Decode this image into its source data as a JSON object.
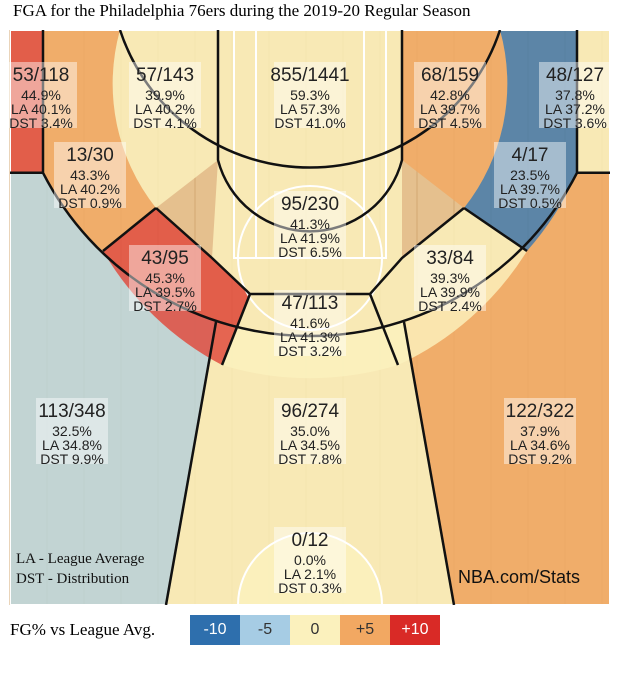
{
  "title": "FGA for the Philadelphia 76ers during the 2019-20 Regular Season",
  "legend": {
    "label": "FG% vs League Avg.",
    "items": [
      {
        "text": "-10",
        "color": "#2e6fad",
        "text_color": "#ffffff"
      },
      {
        "text": "-5",
        "color": "#a6cce4",
        "text_color": "#333333"
      },
      {
        "text": "0",
        "color": "#fbf1bd",
        "text_color": "#333333"
      },
      {
        "text": "+5",
        "color": "#f2a862",
        "text_color": "#333333"
      },
      {
        "text": "+10",
        "color": "#d92a26",
        "text_color": "#ffffff"
      }
    ]
  },
  "notes": {
    "la": "LA - League Average",
    "dst": "DST - Distribution",
    "site": "NBA.com/Stats"
  },
  "chart_data": {
    "type": "heatmap",
    "title": "FGA for the Philadelphia 76ers during the 2019-20 Regular Season",
    "zones": [
      {
        "id": "left-corner-3",
        "made": 53,
        "att": 118,
        "fga": "53/118",
        "pct": "44.9%",
        "la": "LA 40.1%",
        "dst": "DST 3.4%",
        "color": "#e0483a"
      },
      {
        "id": "left-short-baseline",
        "made": 57,
        "att": 143,
        "fga": "57/143",
        "pct": "39.9%",
        "la": "LA 40.2%",
        "dst": "DST 4.1%",
        "color": "#fbf1bd"
      },
      {
        "id": "restricted-area",
        "made": 855,
        "att": 1441,
        "fga": "855/1441",
        "pct": "59.3%",
        "la": "LA 57.3%",
        "dst": "DST 41.0%",
        "color": "#fbf1bd"
      },
      {
        "id": "right-short-baseline",
        "made": 68,
        "att": 159,
        "fga": "68/159",
        "pct": "42.8%",
        "la": "LA 39.7%",
        "dst": "DST 4.5%",
        "color": "#f2a862"
      },
      {
        "id": "right-corner-3",
        "made": 48,
        "att": 127,
        "fga": "48/127",
        "pct": "37.8%",
        "la": "LA 37.2%",
        "dst": "DST 3.6%",
        "color": "#fbf1bd"
      },
      {
        "id": "left-baseline-mid",
        "made": 13,
        "att": 30,
        "fga": "13/30",
        "pct": "43.3%",
        "la": "LA 40.2%",
        "dst": "DST 0.9%",
        "color": "#f2a862"
      },
      {
        "id": "right-baseline-mid",
        "made": 4,
        "att": 17,
        "fga": "4/17",
        "pct": "23.5%",
        "la": "LA 39.7%",
        "dst": "DST 0.5%",
        "color": "#3d78ac"
      },
      {
        "id": "paint-non-ra",
        "made": 95,
        "att": 230,
        "fga": "95/230",
        "pct": "41.3%",
        "la": "LA 41.9%",
        "dst": "DST 6.5%",
        "color": "#fbf1bd"
      },
      {
        "id": "left-elbow-mid",
        "made": 43,
        "att": 95,
        "fga": "43/95",
        "pct": "45.3%",
        "la": "LA 39.5%",
        "dst": "DST 2.7%",
        "color": "#e0483a"
      },
      {
        "id": "right-elbow-mid",
        "made": 33,
        "att": 84,
        "fga": "33/84",
        "pct": "39.3%",
        "la": "LA 39.9%",
        "dst": "DST 2.4%",
        "color": "#fbf1bd"
      },
      {
        "id": "top-key-mid",
        "made": 47,
        "att": 113,
        "fga": "47/113",
        "pct": "41.6%",
        "la": "LA 41.3%",
        "dst": "DST 3.2%",
        "color": "#fbf1bd"
      },
      {
        "id": "left-wing-3",
        "made": 113,
        "att": 348,
        "fga": "113/348",
        "pct": "32.5%",
        "la": "LA 34.8%",
        "dst": "DST 9.9%",
        "color": "#b9d8e2"
      },
      {
        "id": "center-3",
        "made": 96,
        "att": 274,
        "fga": "96/274",
        "pct": "35.0%",
        "la": "LA 34.5%",
        "dst": "DST 7.8%",
        "color": "#fbf1bd"
      },
      {
        "id": "right-wing-3",
        "made": 122,
        "att": 322,
        "fga": "122/322",
        "pct": "37.9%",
        "la": "LA 34.6%",
        "dst": "DST 9.2%",
        "color": "#f2a862"
      },
      {
        "id": "backcourt",
        "made": 0,
        "att": 12,
        "fga": "0/12",
        "pct": "0.0%",
        "la": "LA 2.1%",
        "dst": "DST 0.3%",
        "color": "#fbf1bd"
      }
    ]
  }
}
